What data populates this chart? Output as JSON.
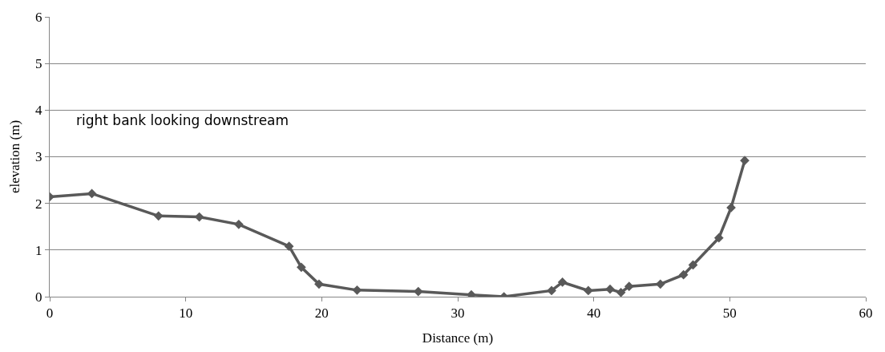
{
  "chart_data": {
    "type": "line",
    "xlabel": "Distance (m)",
    "ylabel": "elevation (m)",
    "annotations": [
      "right bank looking downstream"
    ],
    "x": [
      0,
      3.1,
      8.0,
      11.0,
      13.9,
      17.6,
      18.5,
      19.8,
      22.6,
      27.1,
      31.0,
      33.4,
      36.9,
      37.7,
      39.6,
      41.2,
      42.0,
      42.6,
      44.9,
      46.6,
      47.3,
      49.2,
      50.1,
      51.1
    ],
    "series": [
      {
        "color": "#595959",
        "values": [
          2.14,
          2.21,
          1.73,
          1.71,
          1.55,
          1.08,
          0.63,
          0.27,
          0.14,
          0.11,
          0.04,
          0.0,
          0.13,
          0.31,
          0.13,
          0.16,
          0.09,
          0.22,
          0.27,
          0.47,
          0.68,
          1.26,
          1.91,
          2.92
        ]
      }
    ],
    "xlim": [
      0,
      60
    ],
    "xticks": [
      0,
      10,
      20,
      30,
      40,
      50,
      60
    ],
    "ylim": [
      0,
      6
    ],
    "yticks": [
      0,
      1,
      2,
      3,
      4,
      5,
      6
    ],
    "grid": "y",
    "marker": "diamond",
    "line_style": "solid"
  }
}
